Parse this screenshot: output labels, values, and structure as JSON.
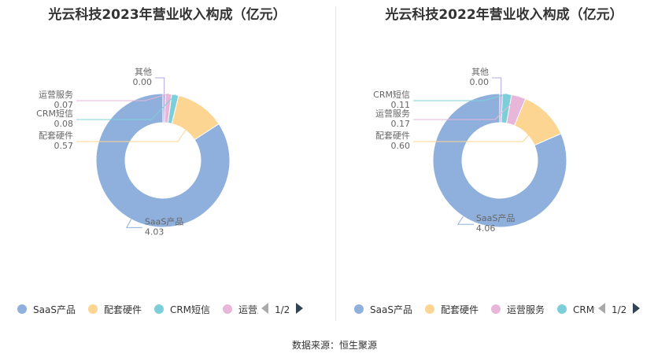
{
  "chart_data": [
    {
      "type": "pie",
      "title": "光云科技2023年营业收入构成（亿元）",
      "labels": [
        "SaaS产品",
        "配套硬件",
        "CRM短信",
        "运营服务",
        "其他"
      ],
      "values": [
        4.03,
        0.57,
        0.08,
        0.07,
        0.0
      ],
      "value_labels": [
        "4.03",
        "0.57",
        "0.08",
        "0.07",
        "0.00"
      ],
      "colors": [
        "#8fb0dc",
        "#fcd592",
        "#7ccfd8",
        "#e8b6d8",
        "#b5a8e0"
      ],
      "legend": {
        "placement": "bottom",
        "visible_items": [
          "SaaS产品",
          "配套硬件",
          "CRM短信",
          "运营服务"
        ],
        "visible_colors": [
          "#8fb0dc",
          "#fcd592",
          "#7ccfd8",
          "#e8b6d8"
        ],
        "page": "1/2"
      }
    },
    {
      "type": "pie",
      "title": "光云科技2022年营业收入构成（亿元）",
      "labels": [
        "SaaS产品",
        "配套硬件",
        "运营服务",
        "CRM短信",
        "其他"
      ],
      "values": [
        4.06,
        0.6,
        0.17,
        0.11,
        0.0
      ],
      "value_labels": [
        "4.06",
        "0.60",
        "0.17",
        "0.11",
        "0.00"
      ],
      "colors": [
        "#8fb0dc",
        "#fcd592",
        "#e8b6d8",
        "#7ccfd8",
        "#b5a8e0"
      ],
      "legend": {
        "placement": "bottom",
        "visible_items": [
          "SaaS产品",
          "配套硬件",
          "运营服务",
          "CRM短信"
        ],
        "visible_colors": [
          "#8fb0dc",
          "#fcd592",
          "#e8b6d8",
          "#7ccfd8"
        ],
        "page": "1/2"
      }
    }
  ],
  "footer": {
    "source": "数据来源：恒生聚源"
  }
}
